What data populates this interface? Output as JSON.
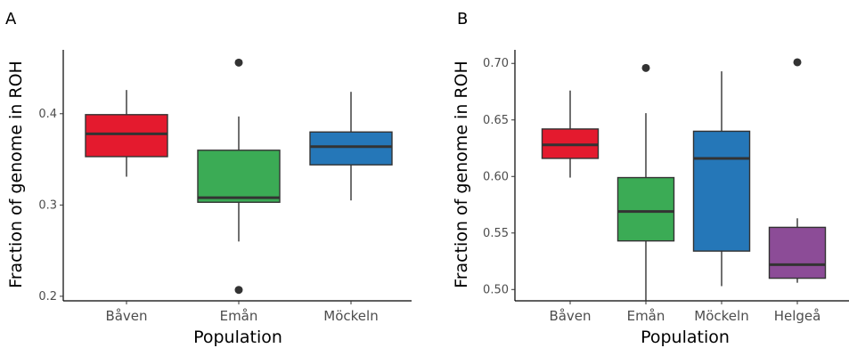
{
  "chart_data": [
    {
      "panel": "A",
      "type": "boxplot",
      "xlabel": "Population",
      "ylabel": "Fraction of genome in ROH",
      "ylim": [
        0.195,
        0.47
      ],
      "yticks": [
        "0.2",
        "0.3",
        "0.4"
      ],
      "ytick_values": [
        0.2,
        0.3,
        0.4
      ],
      "grid": false,
      "legend": "none",
      "categories": [
        "Båven",
        "Emån",
        "Möckeln"
      ],
      "boxes": [
        {
          "category": "Båven",
          "whisker_low": 0.331,
          "q1": 0.353,
          "median": 0.378,
          "q3": 0.399,
          "whisker_high": 0.426,
          "outliers": [],
          "color": "#e41a2e"
        },
        {
          "category": "Emån",
          "whisker_low": 0.26,
          "q1": 0.303,
          "median": 0.308,
          "q3": 0.36,
          "whisker_high": 0.397,
          "outliers": [
            0.456,
            0.207
          ],
          "color": "#3bab55"
        },
        {
          "category": "Möckeln",
          "whisker_low": 0.305,
          "q1": 0.344,
          "median": 0.364,
          "q3": 0.38,
          "whisker_high": 0.424,
          "outliers": [],
          "color": "#2577b8"
        }
      ]
    },
    {
      "panel": "B",
      "type": "boxplot",
      "xlabel": "Population",
      "ylabel": "Fraction of genome in ROH",
      "ylim": [
        0.49,
        0.712
      ],
      "yticks": [
        "0.50",
        "0.55",
        "0.60",
        "0.65",
        "0.70"
      ],
      "ytick_values": [
        0.5,
        0.55,
        0.6,
        0.65,
        0.7
      ],
      "grid": false,
      "legend": "none",
      "categories": [
        "Båven",
        "Emån",
        "Möckeln",
        "Helgeå"
      ],
      "boxes": [
        {
          "category": "Båven",
          "whisker_low": 0.599,
          "q1": 0.616,
          "median": 0.628,
          "q3": 0.642,
          "whisker_high": 0.676,
          "outliers": [],
          "color": "#e41a2e"
        },
        {
          "category": "Emån",
          "whisker_low": 0.49,
          "q1": 0.543,
          "median": 0.569,
          "q3": 0.599,
          "whisker_high": 0.656,
          "outliers": [
            0.696
          ],
          "color": "#3bab55"
        },
        {
          "category": "Möckeln",
          "whisker_low": 0.503,
          "q1": 0.534,
          "median": 0.616,
          "q3": 0.64,
          "whisker_high": 0.693,
          "outliers": [],
          "color": "#2577b8"
        },
        {
          "category": "Helgeå",
          "whisker_low": 0.506,
          "q1": 0.51,
          "median": 0.522,
          "q3": 0.555,
          "whisker_high": 0.563,
          "outliers": [
            0.701
          ],
          "color": "#8c4c97"
        }
      ]
    }
  ]
}
